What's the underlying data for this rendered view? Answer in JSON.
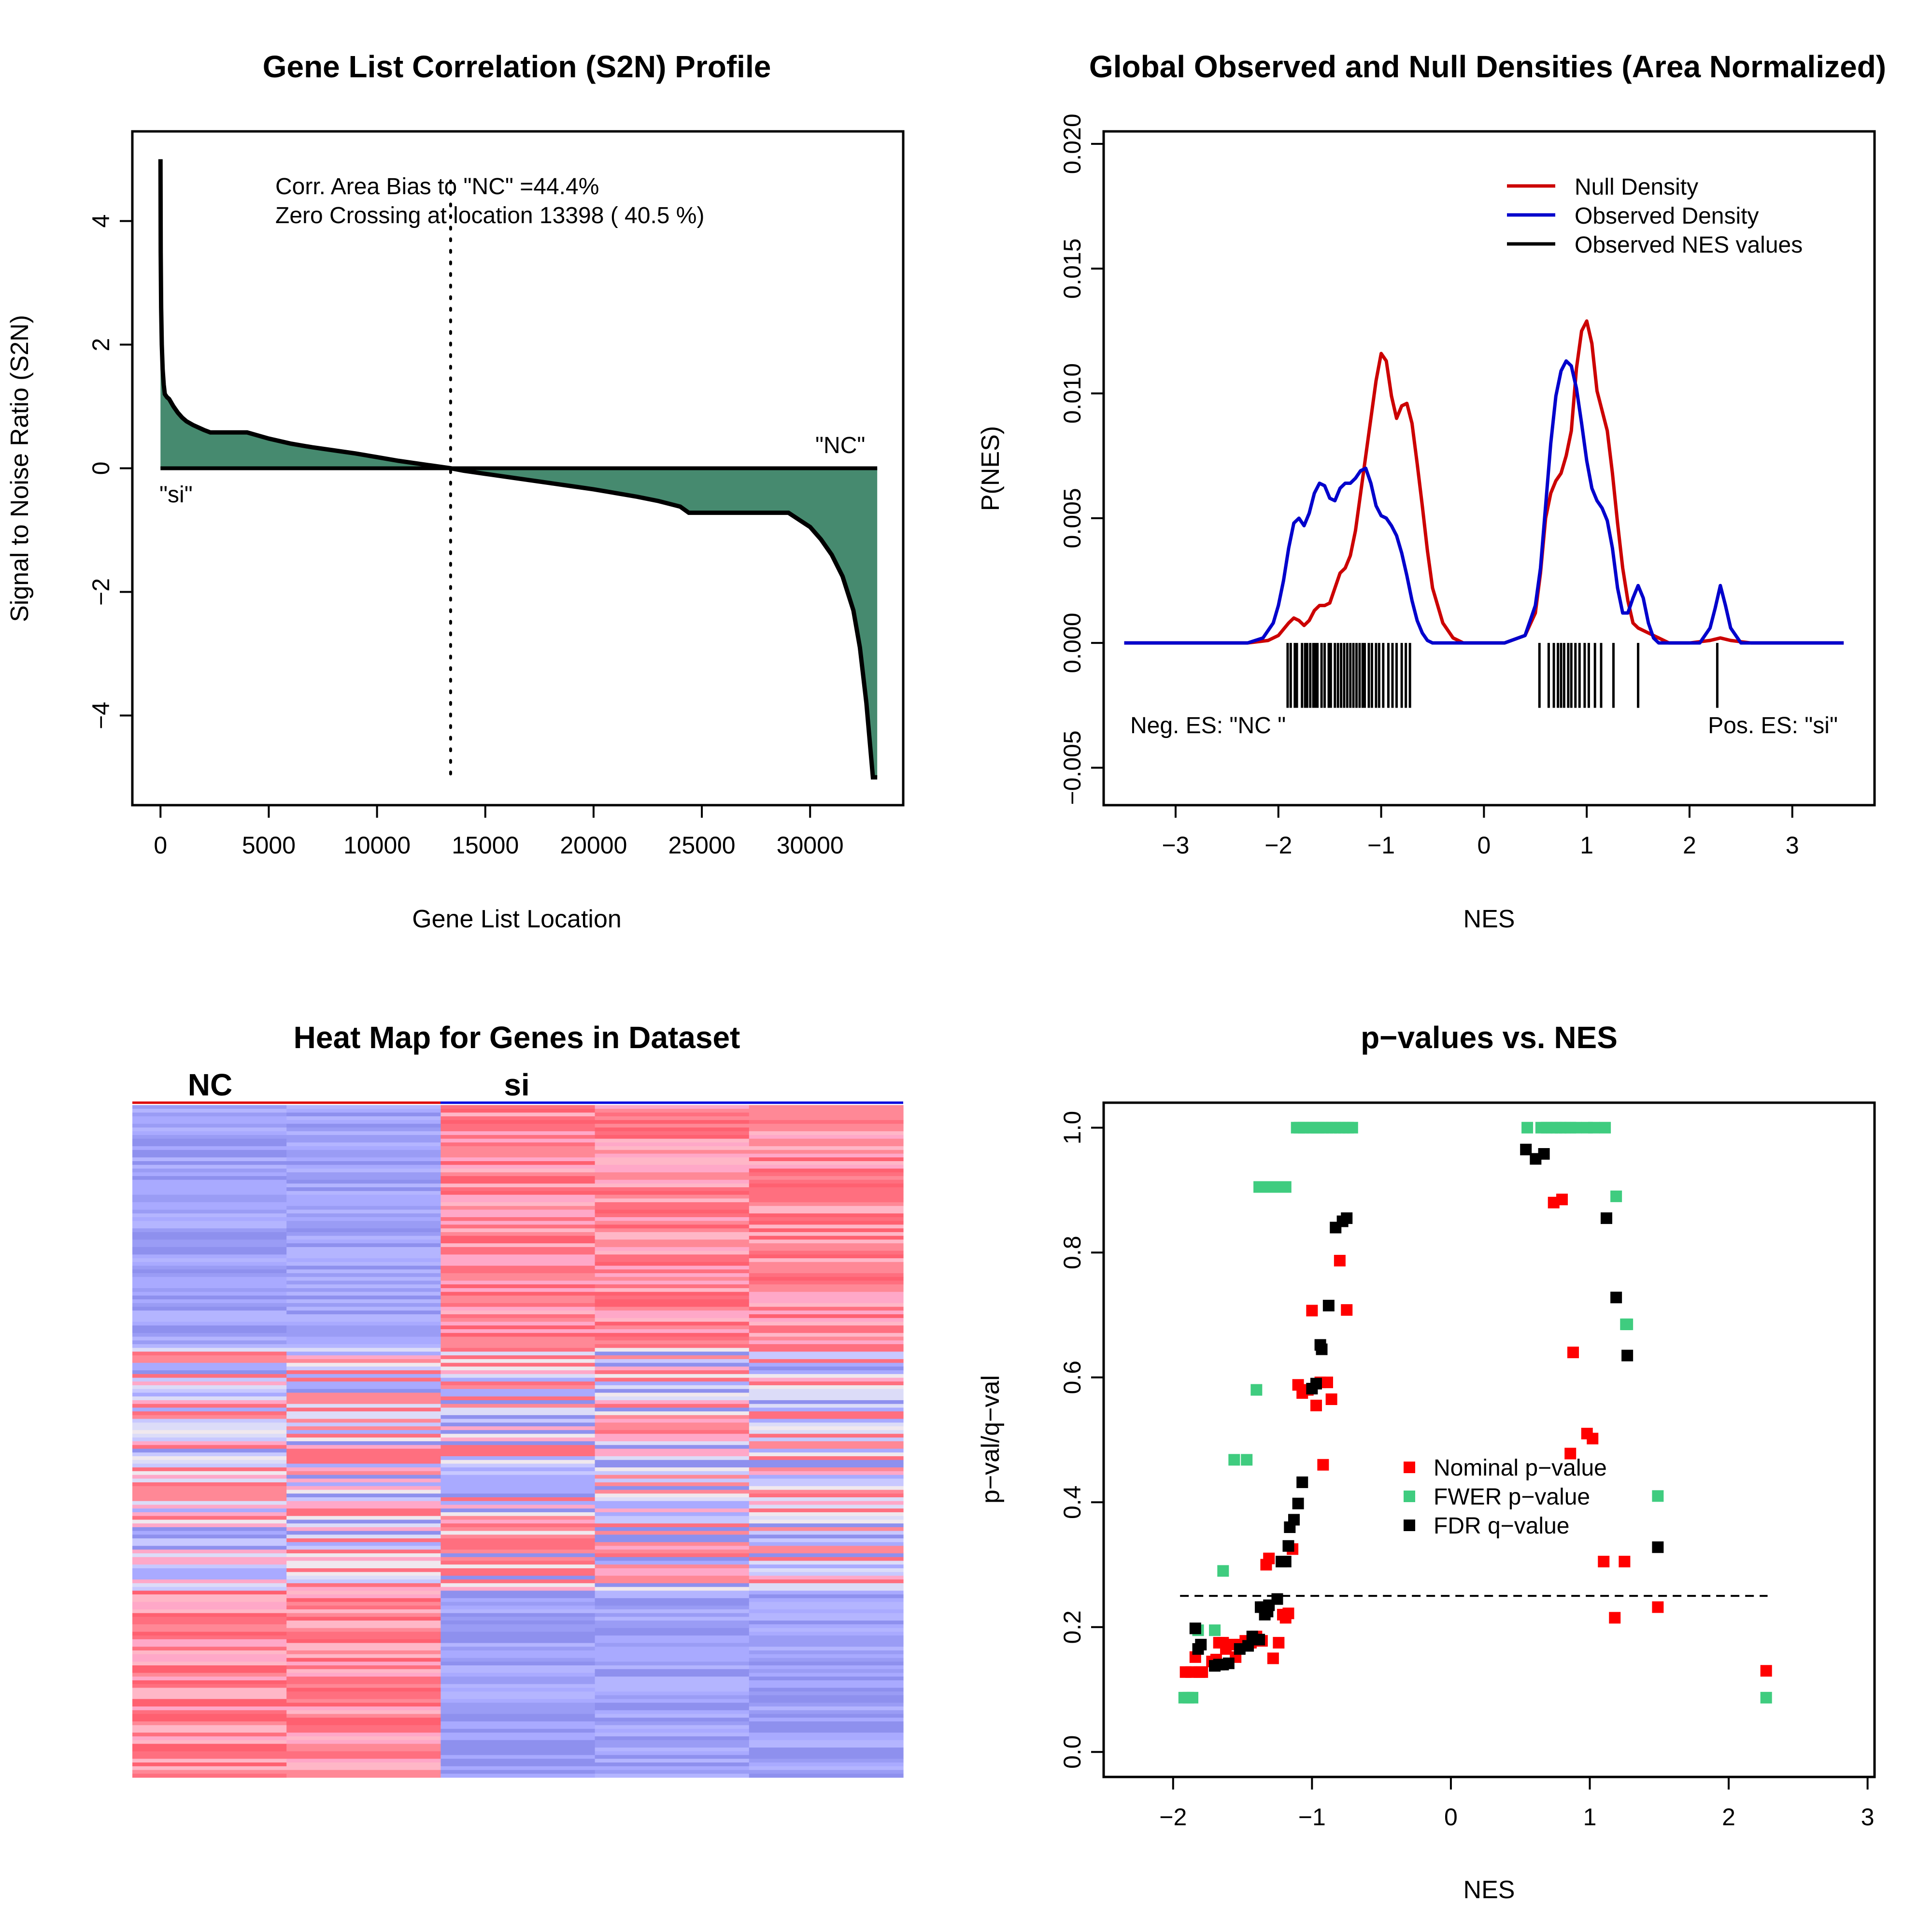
{
  "colors": {
    "green_fill": "#468a6f",
    "null_density": "#cc0000",
    "observed_density": "#0000cc",
    "nominal": "#ff0000",
    "fwer": "#3fcc7f",
    "fdr": "#000000",
    "heat_blue": "#a9aaff",
    "heat_red": "#ff6f7f",
    "heat_pink": "#ffa8c8"
  },
  "chart_data": [
    {
      "type": "area",
      "title": "Gene List Correlation (S2N) Profile",
      "xlabel": "Gene List Location",
      "ylabel": "Signal to Noise Ratio (S2N)",
      "xlim": [
        -1300,
        34300
      ],
      "ylim": [
        -5.45,
        5.45
      ],
      "xticks": [
        0,
        5000,
        10000,
        15000,
        20000,
        25000,
        30000
      ],
      "xtick_labels": [
        "0",
        "5000",
        "10000",
        "15000",
        "20000",
        "25000",
        "30000"
      ],
      "yticks": [
        -4,
        -2,
        0,
        2,
        4
      ],
      "ytick_labels": [
        "−4",
        "−2",
        "0",
        "2",
        "4"
      ],
      "x": [
        0,
        10,
        30,
        60,
        100,
        150,
        200,
        300,
        400,
        600,
        800,
        1000,
        1200,
        1500,
        2000,
        2300,
        2500,
        3000,
        3500,
        4000,
        5000,
        6000,
        7000,
        8000,
        9000,
        10000,
        11000,
        12000,
        13398,
        14000,
        15000,
        16000,
        17000,
        18000,
        19000,
        20000,
        21000,
        22000,
        23000,
        24000,
        24400,
        25000,
        26000,
        27000,
        28000,
        29000,
        30000,
        30500,
        31000,
        31500,
        32000,
        32300,
        32600,
        32800,
        32900,
        32950,
        33000,
        33100
      ],
      "values": [
        5.0,
        3.5,
        2.6,
        2.0,
        1.6,
        1.35,
        1.2,
        1.15,
        1.12,
        1.0,
        0.9,
        0.82,
        0.76,
        0.7,
        0.62,
        0.58,
        0.58,
        0.58,
        0.58,
        0.58,
        0.48,
        0.4,
        0.34,
        0.29,
        0.24,
        0.18,
        0.12,
        0.07,
        0.0,
        -0.04,
        -0.09,
        -0.14,
        -0.19,
        -0.24,
        -0.29,
        -0.34,
        -0.4,
        -0.46,
        -0.53,
        -0.62,
        -0.72,
        -0.72,
        -0.72,
        -0.72,
        -0.72,
        -0.72,
        -0.95,
        -1.15,
        -1.4,
        -1.75,
        -2.3,
        -2.9,
        -3.8,
        -4.6,
        -5.0,
        -5.0,
        -5.0,
        -5.0
      ],
      "zero_crossing": 13398,
      "annotations": [
        "Corr. Area Bias to \"NC\" =44.4%",
        "Zero Crossing at location  13398  ( 40.5  %)"
      ],
      "label_pos": "\"NC\"",
      "label_neg": "\"si\""
    },
    {
      "type": "line",
      "title": "Global Observed and Null Densities (Area Normalized)",
      "xlabel": "NES",
      "ylabel": "P(NES)",
      "xlim": [
        -3.7,
        3.8
      ],
      "ylim": [
        -0.0065,
        0.0205
      ],
      "xticks": [
        -3,
        -2,
        -1,
        0,
        1,
        2,
        3
      ],
      "xtick_labels": [
        "−3",
        "−2",
        "−1",
        "0",
        "1",
        "2",
        "3"
      ],
      "yticks": [
        -0.005,
        0.0,
        0.005,
        0.01,
        0.015,
        0.02
      ],
      "ytick_labels": [
        "−0.005",
        "0.000",
        "0.005",
        "0.010",
        "0.015",
        "0.020"
      ],
      "legend": [
        "Null Density",
        "Observed Density",
        "Observed NES values"
      ],
      "legend_position": "top-right",
      "series": [
        {
          "name": "Null Density",
          "x": [
            -3.5,
            -2.3,
            -2.1,
            -2.0,
            -1.9,
            -1.85,
            -1.8,
            -1.75,
            -1.7,
            -1.65,
            -1.6,
            -1.55,
            -1.5,
            -1.45,
            -1.4,
            -1.35,
            -1.3,
            -1.25,
            -1.2,
            -1.15,
            -1.1,
            -1.05,
            -1.0,
            -0.95,
            -0.9,
            -0.85,
            -0.8,
            -0.75,
            -0.7,
            -0.65,
            -0.6,
            -0.55,
            -0.5,
            -0.4,
            -0.3,
            -0.2,
            0.2,
            0.4,
            0.5,
            0.55,
            0.6,
            0.65,
            0.7,
            0.75,
            0.8,
            0.85,
            0.9,
            0.95,
            1.0,
            1.05,
            1.1,
            1.15,
            1.2,
            1.25,
            1.3,
            1.35,
            1.4,
            1.45,
            1.5,
            1.6,
            1.7,
            1.8,
            2.0,
            2.2,
            2.3,
            2.4,
            2.6,
            3.5
          ],
          "values": [
            0,
            0,
            0.0001,
            0.0003,
            0.0008,
            0.001,
            0.0009,
            0.0007,
            0.0009,
            0.0013,
            0.0015,
            0.0015,
            0.0016,
            0.0022,
            0.0028,
            0.003,
            0.0035,
            0.0045,
            0.006,
            0.0075,
            0.009,
            0.0105,
            0.0116,
            0.0113,
            0.0099,
            0.009,
            0.0095,
            0.0096,
            0.0088,
            0.0072,
            0.0055,
            0.0037,
            0.0022,
            0.0008,
            0.0002,
            0,
            0,
            0.0003,
            0.0012,
            0.0028,
            0.005,
            0.006,
            0.0065,
            0.0068,
            0.0075,
            0.0085,
            0.011,
            0.0125,
            0.0129,
            0.012,
            0.0101,
            0.0093,
            0.0085,
            0.0068,
            0.0048,
            0.003,
            0.0017,
            0.0008,
            0.0006,
            0.0004,
            0.0002,
            0,
            0,
            0.0001,
            0.0002,
            0.0001,
            0,
            0
          ]
        },
        {
          "name": "Observed Density",
          "x": [
            -3.5,
            -2.3,
            -2.15,
            -2.05,
            -2.0,
            -1.95,
            -1.9,
            -1.85,
            -1.8,
            -1.75,
            -1.7,
            -1.65,
            -1.6,
            -1.55,
            -1.5,
            -1.45,
            -1.4,
            -1.35,
            -1.3,
            -1.25,
            -1.2,
            -1.15,
            -1.1,
            -1.05,
            -1.0,
            -0.95,
            -0.9,
            -0.85,
            -0.8,
            -0.75,
            -0.7,
            -0.65,
            -0.6,
            -0.55,
            -0.5,
            -0.45,
            -0.4,
            -0.3,
            0.2,
            0.4,
            0.5,
            0.55,
            0.6,
            0.65,
            0.7,
            0.75,
            0.8,
            0.85,
            0.9,
            0.95,
            1.0,
            1.05,
            1.1,
            1.15,
            1.2,
            1.25,
            1.3,
            1.35,
            1.4,
            1.45,
            1.5,
            1.55,
            1.6,
            1.65,
            1.7,
            1.8,
            2.1,
            2.2,
            2.25,
            2.3,
            2.35,
            2.4,
            2.5,
            3.5
          ],
          "values": [
            0,
            0,
            0.0002,
            0.0008,
            0.0015,
            0.0025,
            0.0038,
            0.0048,
            0.005,
            0.0047,
            0.0052,
            0.006,
            0.0064,
            0.0063,
            0.0058,
            0.0057,
            0.0062,
            0.0064,
            0.0064,
            0.0066,
            0.0069,
            0.007,
            0.0064,
            0.0055,
            0.0051,
            0.005,
            0.0047,
            0.0043,
            0.0036,
            0.0027,
            0.0017,
            0.0009,
            0.0004,
            0.0001,
            0,
            0,
            0,
            0,
            0,
            0.0003,
            0.0015,
            0.003,
            0.0055,
            0.008,
            0.0099,
            0.0109,
            0.0113,
            0.0111,
            0.0102,
            0.0088,
            0.0073,
            0.0062,
            0.0057,
            0.0054,
            0.0049,
            0.0038,
            0.0022,
            0.0012,
            0.0012,
            0.0018,
            0.0023,
            0.0018,
            0.0008,
            0.0002,
            0,
            0,
            0,
            0.0006,
            0.0014,
            0.0023,
            0.0015,
            0.0006,
            0,
            0
          ]
        }
      ],
      "nes_values": [
        -1.91,
        -1.88,
        -1.84,
        -1.82,
        -1.77,
        -1.74,
        -1.72,
        -1.69,
        -1.66,
        -1.64,
        -1.62,
        -1.58,
        -1.55,
        -1.51,
        -1.49,
        -1.45,
        -1.42,
        -1.39,
        -1.36,
        -1.33,
        -1.3,
        -1.27,
        -1.24,
        -1.21,
        -1.18,
        -1.16,
        -1.12,
        -1.09,
        -1.05,
        -1.02,
        -0.98,
        -0.93,
        -0.89,
        -0.85,
        -0.8,
        -0.76,
        -0.72,
        0.54,
        0.63,
        0.68,
        0.72,
        0.75,
        0.78,
        0.82,
        0.85,
        0.89,
        0.93,
        0.98,
        1.02,
        1.08,
        1.14,
        1.26,
        1.5,
        2.27
      ],
      "annotations": [
        "Neg. ES: \"NC \"",
        "Pos. ES: \"si\""
      ]
    },
    {
      "type": "heatmap",
      "title": "Heat Map for Genes in Dataset",
      "group_labels": [
        "NC",
        "si"
      ],
      "columns": 5,
      "rows": 180,
      "blocks": [
        {
          "rows": [
            0,
            65
          ],
          "left": "blue",
          "right": "red"
        },
        {
          "rows": [
            65,
            130
          ],
          "left": "mixed",
          "right": "mixed"
        },
        {
          "rows": [
            130,
            180
          ],
          "left": "red",
          "right": "blue"
        }
      ]
    },
    {
      "type": "scatter",
      "title": "p−values vs. NES",
      "xlabel": "NES",
      "ylabel": "p−val/q−val",
      "xlim": [
        -2.5,
        3.05
      ],
      "ylim": [
        -0.04,
        1.04
      ],
      "xticks": [
        -2,
        -1,
        0,
        1,
        2,
        3
      ],
      "xtick_labels": [
        "−2",
        "−1",
        "0",
        "1",
        "2",
        "3"
      ],
      "yticks": [
        0.0,
        0.2,
        0.4,
        0.6,
        0.8,
        1.0
      ],
      "ytick_labels": [
        "0.0",
        "0.2",
        "0.4",
        "0.6",
        "0.8",
        "1.0"
      ],
      "threshold": 0.25,
      "legend": [
        "Nominal p−value",
        "FWER p−value",
        "FDR q−value"
      ],
      "legend_position": "center-right",
      "series": [
        {
          "name": "Nominal p−value",
          "x": [
            -1.91,
            -1.87,
            -1.84,
            -1.81,
            -1.79,
            -1.72,
            -1.69,
            -1.67,
            -1.64,
            -1.62,
            -1.58,
            -1.55,
            -1.52,
            -1.48,
            -1.44,
            -1.4,
            -1.36,
            -1.33,
            -1.31,
            -1.28,
            -1.24,
            -1.21,
            -1.19,
            -1.17,
            -1.14,
            -1.1,
            -1.07,
            -1.03,
            -1.0,
            -0.97,
            -0.94,
            -0.92,
            -0.89,
            -0.86,
            -0.8,
            -0.75,
            0.74,
            0.8,
            0.88,
            0.86,
            0.98,
            1.02,
            1.1,
            1.18,
            1.25,
            1.49,
            2.27
          ],
          "values": [
            0.128,
            0.128,
            0.152,
            0.128,
            0.128,
            0.145,
            0.148,
            0.175,
            0.175,
            0.165,
            0.172,
            0.152,
            0.172,
            0.178,
            0.175,
            0.185,
            0.178,
            0.3,
            0.31,
            0.15,
            0.175,
            0.22,
            0.215,
            0.222,
            0.325,
            0.588,
            0.575,
            0.58,
            0.707,
            0.555,
            0.592,
            0.46,
            0.592,
            0.565,
            0.787,
            0.708,
            0.88,
            0.885,
            0.64,
            0.478,
            0.51,
            0.502,
            0.305,
            0.215,
            0.305,
            0.232,
            0.13
          ]
        },
        {
          "name": "FWER p−value",
          "x": [
            -1.92,
            -1.89,
            -1.86,
            -1.82,
            -1.7,
            -1.64,
            -1.56,
            -1.47,
            -1.4,
            -1.38,
            -1.35,
            -1.32,
            -1.29,
            -1.26,
            -1.22,
            -1.19,
            -1.11,
            -1.09,
            -1.06,
            -1.03,
            -1.0,
            -0.97,
            -0.95,
            -0.92,
            -0.89,
            -0.86,
            -0.83,
            -0.8,
            -0.77,
            -0.74,
            -0.71,
            0.55,
            0.65,
            0.69,
            0.73,
            0.76,
            0.79,
            0.82,
            0.86,
            0.9,
            0.98,
            1.03,
            1.11,
            1.19,
            1.26,
            1.27,
            1.49,
            2.27
          ],
          "values": [
            0.087,
            0.087,
            0.087,
            0.195,
            0.195,
            0.29,
            0.468,
            0.468,
            0.58,
            0.905,
            0.905,
            0.905,
            0.905,
            0.905,
            0.905,
            0.905,
            1.0,
            1.0,
            1.0,
            1.0,
            1.0,
            1.0,
            1.0,
            1.0,
            1.0,
            1.0,
            1.0,
            1.0,
            1.0,
            1.0,
            1.0,
            1.0,
            1.0,
            1.0,
            1.0,
            1.0,
            1.0,
            1.0,
            1.0,
            1.0,
            1.0,
            1.0,
            1.0,
            0.89,
            0.685,
            0.685,
            0.41,
            0.087
          ]
        },
        {
          "name": "FDR q−value",
          "x": [
            -1.84,
            -1.82,
            -1.8,
            -1.7,
            -1.67,
            -1.64,
            -1.6,
            -1.52,
            -1.46,
            -1.43,
            -1.38,
            -1.37,
            -1.35,
            -1.34,
            -1.32,
            -1.31,
            -1.25,
            -1.22,
            -1.19,
            -1.17,
            -1.16,
            -1.13,
            -1.1,
            -1.07,
            -1.0,
            -0.97,
            -0.94,
            -0.93,
            -0.88,
            -0.83,
            -0.78,
            -0.75,
            0.54,
            0.61,
            0.67,
            1.12,
            1.19,
            1.27,
            1.49
          ],
          "values": [
            0.198,
            0.165,
            0.172,
            0.138,
            0.14,
            0.14,
            0.142,
            0.165,
            0.17,
            0.185,
            0.18,
            0.232,
            0.232,
            0.22,
            0.225,
            0.235,
            0.245,
            0.305,
            0.305,
            0.33,
            0.36,
            0.372,
            0.398,
            0.432,
            0.582,
            0.59,
            0.652,
            0.645,
            0.715,
            0.84,
            0.85,
            0.855,
            0.965,
            0.95,
            0.958,
            0.855,
            0.728,
            0.635,
            0.328
          ]
        }
      ]
    }
  ]
}
